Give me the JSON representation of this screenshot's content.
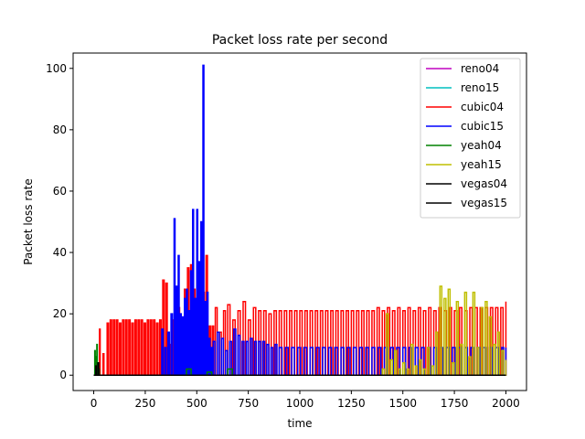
{
  "chart_data": {
    "type": "line",
    "title": "Packet loss rate per second",
    "xlabel": "time",
    "ylabel": "Packet loss rate",
    "xlim": [
      -100,
      2100
    ],
    "ylim": [
      -5,
      105
    ],
    "xticks": [
      0,
      250,
      500,
      750,
      1000,
      1250,
      1500,
      1750,
      2000
    ],
    "yticks": [
      0,
      20,
      40,
      60,
      80,
      100
    ],
    "grid": false,
    "legend_position": "top-right",
    "series": [
      {
        "name": "reno04",
        "color": "#bf00bf",
        "x": [
          0,
          2000
        ],
        "y": [
          0,
          0
        ]
      },
      {
        "name": "reno15",
        "color": "#00bfbf",
        "x": [
          0,
          2000
        ],
        "y": [
          0,
          0
        ]
      },
      {
        "name": "cubic04",
        "color": "#ff0000",
        "x": [
          0,
          10,
          20,
          28,
          35,
          45,
          55,
          65,
          80,
          95,
          110,
          125,
          140,
          155,
          170,
          185,
          200,
          215,
          230,
          245,
          260,
          275,
          290,
          305,
          320,
          335,
          350,
          365,
          380,
          395,
          410,
          425,
          440,
          455,
          470,
          485,
          500,
          515,
          530,
          545,
          560,
          575,
          590,
          610,
          630,
          650,
          675,
          700,
          725,
          750,
          775,
          800,
          825,
          850,
          875,
          900,
          925,
          950,
          975,
          1000,
          1025,
          1050,
          1075,
          1100,
          1125,
          1150,
          1175,
          1200,
          1225,
          1250,
          1275,
          1300,
          1325,
          1350,
          1375,
          1400,
          1425,
          1450,
          1475,
          1500,
          1525,
          1550,
          1575,
          1600,
          1625,
          1650,
          1675,
          1700,
          1725,
          1750,
          1775,
          1800,
          1825,
          1850,
          1875,
          1900,
          1925,
          1950,
          1975,
          2000
        ],
        "y": [
          0,
          6,
          3,
          15,
          0,
          7,
          0,
          17,
          18,
          18,
          18,
          17,
          18,
          18,
          18,
          17,
          18,
          18,
          18,
          17,
          18,
          18,
          18,
          17,
          18,
          31,
          30,
          10,
          18,
          17,
          22,
          18,
          28,
          35,
          36,
          28,
          20,
          15,
          27,
          39,
          16,
          16,
          22,
          14,
          21,
          23,
          18,
          21,
          24,
          18,
          22,
          21,
          21,
          20,
          21,
          21,
          21,
          21,
          21,
          21,
          21,
          21,
          21,
          21,
          21,
          21,
          21,
          21,
          21,
          21,
          21,
          21,
          21,
          21,
          22,
          21,
          22,
          21,
          22,
          21,
          22,
          21,
          22,
          21,
          22,
          21,
          22,
          21,
          22,
          21,
          22,
          21,
          22,
          22,
          22,
          22,
          22,
          22,
          22,
          24
        ]
      },
      {
        "name": "cubic15",
        "color": "#0000ff",
        "x": [
          330,
          345,
          360,
          375,
          390,
          400,
          410,
          420,
          430,
          440,
          450,
          460,
          470,
          480,
          490,
          500,
          510,
          520,
          530,
          540,
          550,
          560,
          570,
          580,
          600,
          620,
          640,
          660,
          680,
          700,
          720,
          740,
          760,
          780,
          800,
          820,
          840,
          860,
          880,
          900,
          930,
          960,
          990,
          1020,
          1050,
          1080,
          1110,
          1140,
          1170,
          1200,
          1230,
          1260,
          1290,
          1320,
          1350,
          1380,
          1410,
          1440,
          1470,
          1500,
          1530,
          1560,
          1590,
          1620,
          1650,
          1680,
          1710,
          1740,
          1770,
          1800,
          1830,
          1860,
          1890,
          1920,
          1950,
          1980,
          2000
        ],
        "y": [
          15,
          9,
          14,
          20,
          51,
          29,
          39,
          20,
          19,
          25,
          28,
          21,
          34,
          54,
          25,
          54,
          37,
          50,
          101,
          24,
          27,
          12,
          9,
          11,
          14,
          12,
          8,
          11,
          15,
          13,
          11,
          11,
          12,
          11,
          11,
          11,
          10,
          9,
          10,
          9,
          9,
          9,
          9,
          9,
          9,
          9,
          9,
          9,
          9,
          9,
          9,
          9,
          9,
          9,
          9,
          9,
          9,
          9,
          9,
          9,
          9,
          9,
          9,
          9,
          9,
          9,
          9,
          9,
          9,
          9,
          9,
          9,
          9,
          9,
          9,
          9,
          9
        ]
      },
      {
        "name": "yeah04",
        "color": "#008000",
        "x": [
          0,
          5,
          10,
          15,
          20,
          25,
          30,
          400,
          450,
          500,
          550,
          600,
          650,
          700
        ],
        "y": [
          0,
          8,
          6,
          10,
          4,
          2,
          0,
          0,
          2,
          0,
          1,
          0,
          2,
          0
        ]
      },
      {
        "name": "yeah15",
        "color": "#bfbf00",
        "x": [
          1400,
          1420,
          1440,
          1460,
          1480,
          1500,
          1520,
          1540,
          1560,
          1580,
          1600,
          1620,
          1640,
          1660,
          1680,
          1700,
          1720,
          1740,
          1760,
          1780,
          1800,
          1820,
          1840,
          1860,
          1880,
          1900,
          1920,
          1940,
          1960,
          1980,
          2000
        ],
        "y": [
          2,
          20,
          5,
          8,
          2,
          4,
          2,
          10,
          3,
          5,
          2,
          9,
          3,
          14,
          29,
          25,
          28,
          4,
          24,
          10,
          27,
          6,
          27,
          9,
          22,
          24,
          19,
          10,
          14,
          8,
          5
        ]
      },
      {
        "name": "vegas04",
        "color": "#000000",
        "x": [
          0,
          10,
          15,
          20,
          30,
          2000
        ],
        "y": [
          0,
          3,
          0,
          4,
          0,
          0
        ]
      },
      {
        "name": "vegas15",
        "color": "#000000",
        "x": [
          0,
          2000
        ],
        "y": [
          0,
          0
        ]
      }
    ]
  }
}
